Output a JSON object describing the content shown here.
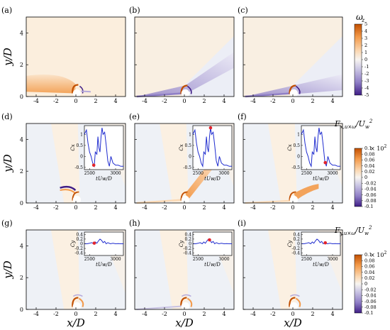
{
  "panel_labels": [
    "(a)",
    "(b)",
    "(c)",
    "(d)",
    "(e)",
    "(f)",
    "(g)",
    "(h)",
    "(i)"
  ],
  "row_ylabels": [
    "y/D",
    "y/D",
    "y/D"
  ],
  "xlabel": "x/D",
  "colors": {
    "pos_dark": "#c24f00",
    "pos_mid": "#f39a4a",
    "pos_light": "#fbd9b4",
    "neutral_warm": "#fbf1e4",
    "neutral_cool": "#eef1f6",
    "neg_light": "#cfcbe6",
    "neg_mid": "#8f7fc6",
    "neg_dark": "#3f1d86",
    "inset_line": "#1f2ccf",
    "inset_marker": "#e3242b"
  },
  "chart_data": [
    {
      "type": "heatmap",
      "row": 0,
      "panels": [
        "(a)",
        "(b)",
        "(c)"
      ],
      "quantity": "vorticity",
      "xlim": [
        -5,
        5
      ],
      "ylim": [
        0,
        5
      ],
      "xticks": [
        "-4",
        "-2",
        "0",
        "2",
        "4"
      ],
      "yticks": [
        "0",
        "2",
        "4"
      ],
      "colorbar": {
        "title": "ω_z",
        "range": [
          -5,
          5
        ],
        "ticks": [
          "5",
          "4",
          "3",
          "2",
          "1",
          "0",
          "-1",
          "-2",
          "-3",
          "-4",
          "-5"
        ]
      }
    },
    {
      "type": "heatmap",
      "row": 1,
      "panels": [
        "(d)",
        "(e)",
        "(f)"
      ],
      "quantity": "F_x,u×ω / U_w^2",
      "xlim": [
        -5,
        5
      ],
      "ylim": [
        0,
        5
      ],
      "xticks": [
        "-4",
        "-2",
        "0",
        "2",
        "4"
      ],
      "yticks": [
        "0",
        "2",
        "4"
      ],
      "colorbar": {
        "title": "F_{x,u×ω}/U_w^2",
        "multiplier": "× 10^2",
        "range": [
          -0.1,
          0.1
        ],
        "ticks": [
          "0.1",
          "0.08",
          "0.06",
          "0.04",
          "0.02",
          "0",
          "-0.02",
          "-0.04",
          "-0.06",
          "-0.08",
          "-0.1"
        ]
      },
      "inset": {
        "type": "line",
        "ylabel": "C_x",
        "xlabel": "tU_w/D",
        "xticks": [
          "2500",
          "3000"
        ],
        "yticks": [
          "1",
          "0.5",
          "0",
          "-0.5"
        ],
        "xlim": [
          2400,
          3150
        ],
        "ylim": [
          -0.6,
          1.4
        ],
        "x": [
          2400,
          2440,
          2470,
          2500,
          2530,
          2560,
          2590,
          2610,
          2640,
          2660,
          2680,
          2700,
          2720,
          2740,
          2760,
          2790,
          2820,
          2850,
          2880,
          2910,
          2950,
          3000,
          3050,
          3100,
          3150
        ],
        "y": [
          1.0,
          1.2,
          0.6,
          0.2,
          0.0,
          -0.3,
          -0.45,
          0.2,
          0.1,
          0.9,
          0.4,
          0.2,
          0.9,
          1.3,
          1.0,
          1.1,
          0.5,
          -0.2,
          -0.45,
          0.0,
          -0.3,
          -0.4,
          -0.4,
          -0.45,
          -0.45
        ],
        "markers_x": [
          2580,
          2740,
          2860
        ]
      }
    },
    {
      "type": "heatmap",
      "row": 2,
      "panels": [
        "(g)",
        "(h)",
        "(i)"
      ],
      "quantity": "F_y,u×ω / U_w^2",
      "xlim": [
        -5,
        5
      ],
      "ylim": [
        0,
        5
      ],
      "xticks": [
        "-4",
        "-2",
        "0",
        "2",
        "4"
      ],
      "yticks": [
        "0",
        "2",
        "4"
      ],
      "colorbar": {
        "title": "F_{y,u×ω}/U_w^2",
        "multiplier": "× 10^2",
        "range": [
          -0.1,
          0.1
        ],
        "ticks": [
          "0.1",
          "0.08",
          "0.06",
          "0.04",
          "0.02",
          "0",
          "-0.02",
          "-0.04",
          "-0.06",
          "-0.08",
          "-0.1"
        ]
      },
      "inset": {
        "type": "line",
        "ylabel": "C_y",
        "xlabel": "tU_w/D",
        "xticks": [
          "2500",
          "3000"
        ],
        "yticks": [
          "0.4",
          "0.2",
          "0",
          "-0.2",
          "-0.4"
        ],
        "xlim": [
          2400,
          3150
        ],
        "ylim": [
          -0.5,
          0.5
        ],
        "x": [
          2400,
          2450,
          2500,
          2540,
          2580,
          2610,
          2640,
          2670,
          2700,
          2730,
          2760,
          2790,
          2820,
          2850,
          2900,
          2950,
          3000,
          3050,
          3100,
          3150
        ],
        "y": [
          0.0,
          0.0,
          0.02,
          0.05,
          0.0,
          0.08,
          0.02,
          0.12,
          0.2,
          0.15,
          0.05,
          0.1,
          0.0,
          0.05,
          0.0,
          0.02,
          0.0,
          0.01,
          0.0,
          0.0
        ],
        "markers_x": [
          2590,
          2720,
          2860
        ]
      }
    }
  ]
}
